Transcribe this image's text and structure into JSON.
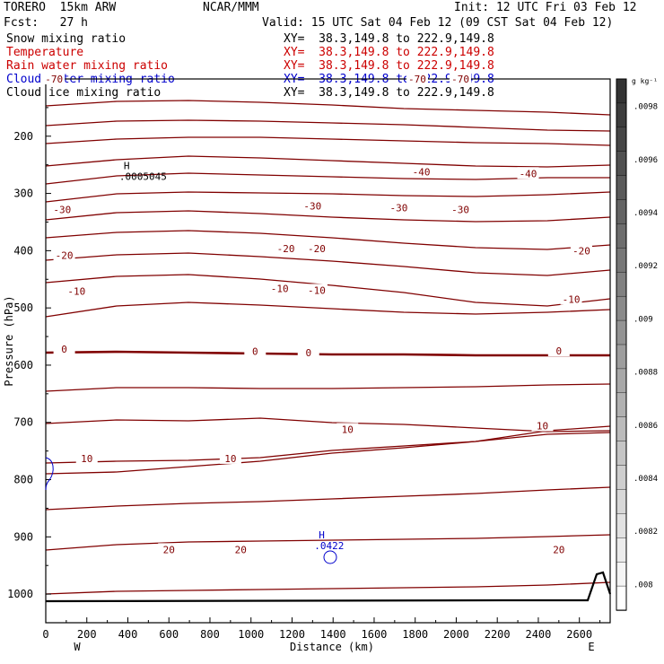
{
  "header": {
    "model": "TORERO  15km ARW",
    "org": "NCAR/MMM",
    "init": "Init: 12 UTC Fri 03 Feb 12",
    "fcst": "Fcst:   27 h",
    "valid": "Valid: 15 UTC Sat 04 Feb 12 (09 CST Sat 04 Feb 12)"
  },
  "fields": [
    {
      "name": "Snow mixing ratio",
      "xy": "XY=  38.3,149.8 to 222.9,149.8",
      "color": "#000000"
    },
    {
      "name": "Temperature",
      "xy": "XY=  38.3,149.8 to 222.9,149.8",
      "color": "#cc0000"
    },
    {
      "name": "Rain water mixing ratio",
      "xy": "XY=  38.3,149.8 to 222.9,149.8",
      "color": "#cc0000"
    },
    {
      "name": "Cloud water mixing ratio",
      "xy": "XY=  38.3,149.8 to 222.9,149.8",
      "color": "#0000cc"
    },
    {
      "name": "Cloud ice mixing ratio",
      "xy": "XY=  38.3,149.8 to 222.9,149.8",
      "color": "#000000"
    }
  ],
  "chart_data": {
    "type": "contour",
    "xlabel": "Distance (km)",
    "ylabel": "Pressure (hPa)",
    "xlim": [
      0,
      2750
    ],
    "ylim": [
      1050,
      100
    ],
    "x_ticks": [
      0,
      200,
      400,
      600,
      800,
      1000,
      1200,
      1400,
      1600,
      1800,
      2000,
      2200,
      2400,
      2600
    ],
    "y_ticks": [
      200,
      300,
      400,
      500,
      600,
      700,
      800,
      900,
      1000
    ],
    "x_ends": {
      "left": "W",
      "right": "E"
    },
    "colorbar": {
      "unit_label": "g kg⁻¹",
      "ticks": [
        ".0098",
        ".0096",
        ".0094",
        ".0092",
        ".009",
        ".0088",
        ".0086",
        ".0084",
        ".0082",
        ".008"
      ],
      "top_value": 0.0099,
      "bottom_value": 0.0079,
      "color_top": "#333333",
      "color_bottom": "#ffffff"
    },
    "temperature_contour_color": "#800000",
    "isotherm_labels": [
      {
        "text": "-70",
        "x": 40,
        "p": 100
      },
      {
        "text": "-70",
        "x": 1810,
        "p": 100
      },
      {
        "text": "-70",
        "x": 2020,
        "p": 100
      },
      {
        "text": "-40",
        "x": 1830,
        "p": 262
      },
      {
        "text": "-40",
        "x": 2350,
        "p": 265
      },
      {
        "text": "-30",
        "x": 80,
        "p": 328
      },
      {
        "text": "-30",
        "x": 1300,
        "p": 322
      },
      {
        "text": "-30",
        "x": 1720,
        "p": 325
      },
      {
        "text": "-30",
        "x": 2020,
        "p": 328
      },
      {
        "text": "-20",
        "x": 90,
        "p": 408
      },
      {
        "text": "-20",
        "x": 1170,
        "p": 396
      },
      {
        "text": "-20",
        "x": 1320,
        "p": 396
      },
      {
        "text": "-20",
        "x": 2610,
        "p": 400
      },
      {
        "text": "-10",
        "x": 150,
        "p": 471
      },
      {
        "text": "-10",
        "x": 1140,
        "p": 466
      },
      {
        "text": "-10",
        "x": 1320,
        "p": 469
      },
      {
        "text": "-10",
        "x": 2560,
        "p": 485
      },
      {
        "text": "0",
        "x": 90,
        "p": 572
      },
      {
        "text": "0",
        "x": 1020,
        "p": 576
      },
      {
        "text": "0",
        "x": 1280,
        "p": 578
      },
      {
        "text": "0",
        "x": 2500,
        "p": 575
      },
      {
        "text": "10",
        "x": 200,
        "p": 763
      },
      {
        "text": "10",
        "x": 900,
        "p": 763
      },
      {
        "text": "10",
        "x": 1470,
        "p": 712
      },
      {
        "text": "10",
        "x": 2420,
        "p": 706
      },
      {
        "text": "20",
        "x": 600,
        "p": 922
      },
      {
        "text": "20",
        "x": 950,
        "p": 922
      },
      {
        "text": "20",
        "x": 2500,
        "p": 922
      }
    ],
    "annotations": [
      {
        "mark": "H",
        "value": ".0005045",
        "x": 380,
        "p": 270,
        "color": "#000000"
      },
      {
        "mark": "H",
        "value": ".0422",
        "x": 1330,
        "p": 915,
        "color": "#0000cc"
      }
    ]
  }
}
